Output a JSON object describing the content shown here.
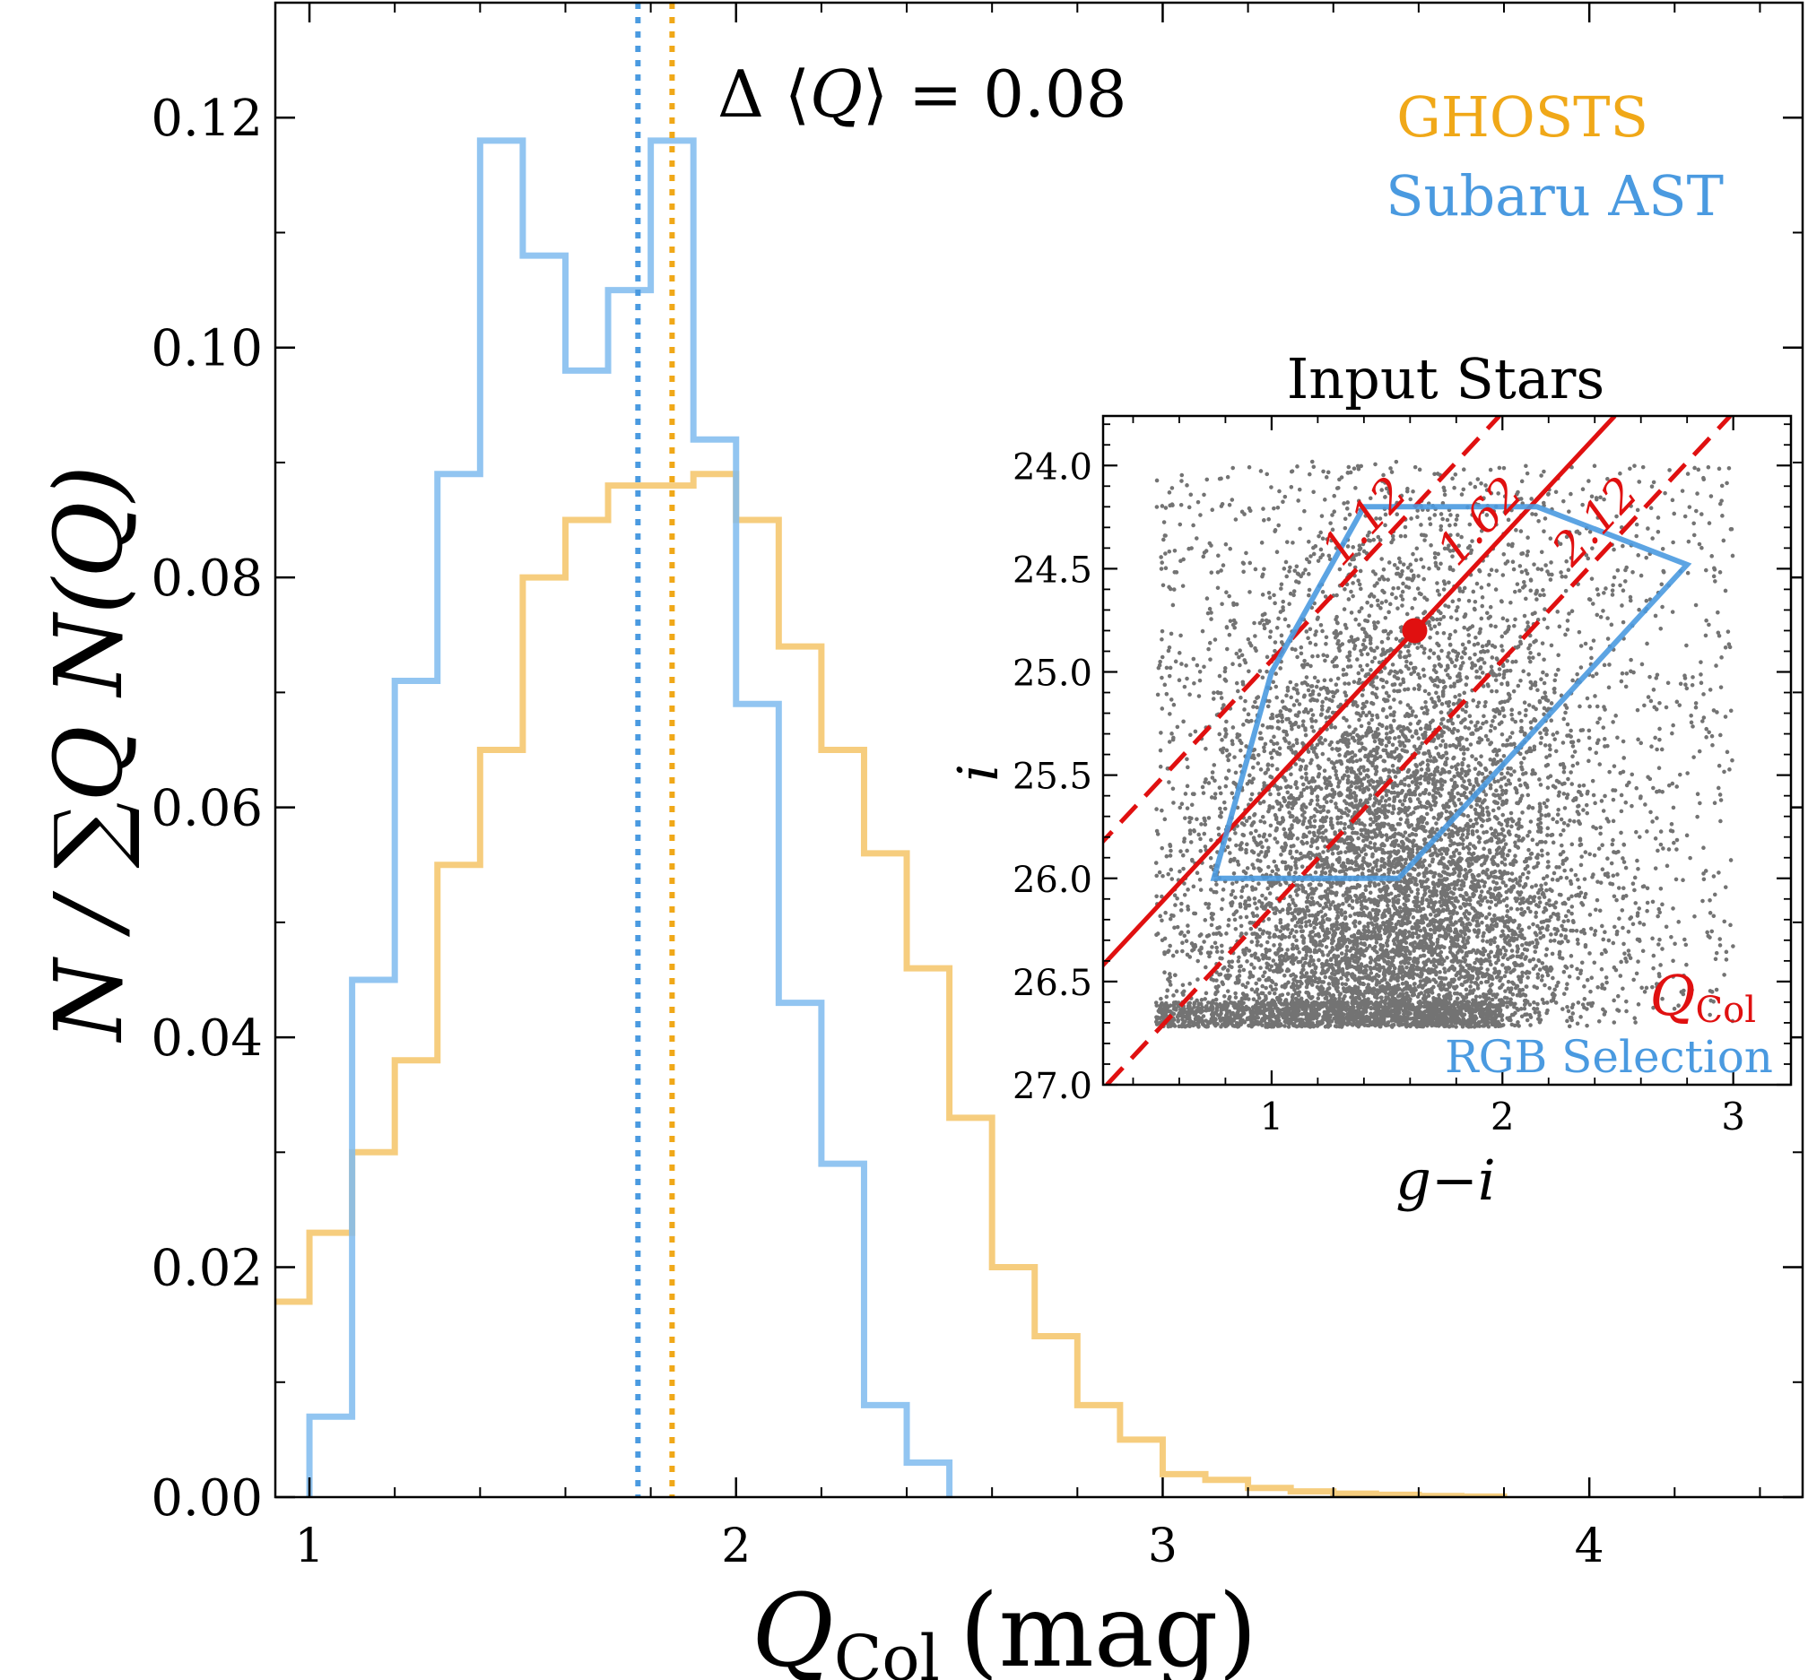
{
  "colors": {
    "ghosts": "#f0a818",
    "subaru": "#4a9ae0",
    "ghosts_hist": "#f5c467",
    "subaru_hist": "#7fbbee",
    "q_col": "#e01010",
    "points": "#000000"
  },
  "chart_data": [
    {
      "type": "line",
      "subtype": "step-histogram",
      "xlabel": {
        "symbol": "Q",
        "subscript": "Col",
        "unit": "(mag)"
      },
      "ylabel": "N / ∑Q N(Q)",
      "xlim": [
        0.92,
        4.5
      ],
      "ylim": [
        0,
        0.13
      ],
      "xticks": [
        1,
        2,
        3,
        4
      ],
      "xtick_labels": [
        "1",
        "2",
        "3",
        "4"
      ],
      "yticks": [
        0,
        0.02,
        0.04,
        0.06,
        0.08,
        0.1,
        0.12
      ],
      "ytick_labels": [
        "0.00",
        "0.02",
        "0.04",
        "0.06",
        "0.08",
        "0.10",
        "0.12"
      ],
      "bin_width": 0.1,
      "grid": false,
      "legend_position": "top-right",
      "series": [
        {
          "name": "GHOSTS",
          "bin_starts": [
            0.9,
            1.0,
            1.1,
            1.2,
            1.3,
            1.4,
            1.5,
            1.6,
            1.7,
            1.8,
            1.9,
            2.0,
            2.1,
            2.2,
            2.3,
            2.4,
            2.5,
            2.6,
            2.7,
            2.8,
            2.9,
            3.0,
            3.1,
            3.2,
            3.3,
            3.4,
            3.5,
            3.6,
            3.7
          ],
          "values": [
            0.017,
            0.023,
            0.03,
            0.038,
            0.055,
            0.065,
            0.08,
            0.085,
            0.088,
            0.088,
            0.089,
            0.085,
            0.074,
            0.065,
            0.056,
            0.046,
            0.033,
            0.02,
            0.014,
            0.008,
            0.005,
            0.002,
            0.0015,
            0.0008,
            0.0005,
            0.0003,
            0.0002,
            0.0001,
            5e-05
          ]
        },
        {
          "name": "Subaru AST",
          "bin_starts": [
            1.0,
            1.1,
            1.2,
            1.3,
            1.4,
            1.5,
            1.6,
            1.7,
            1.8,
            1.9,
            2.0,
            2.1,
            2.2,
            2.3,
            2.4
          ],
          "values": [
            0.007,
            0.045,
            0.071,
            0.089,
            0.118,
            0.108,
            0.098,
            0.105,
            0.118,
            0.092,
            0.069,
            0.043,
            0.029,
            0.008,
            0.003
          ]
        }
      ],
      "vlines": [
        {
          "series": "Subaru AST",
          "x": 1.77,
          "style": "dotted"
        },
        {
          "series": "GHOSTS",
          "x": 1.85,
          "style": "dotted"
        }
      ],
      "annotation": {
        "prefix": "Δ ⟨",
        "symbol": "Q",
        "suffix": "⟩ = 0.08"
      }
    },
    {
      "type": "scatter",
      "title": "Input Stars",
      "xlabel": "g−i",
      "ylabel": "i",
      "xlim": [
        0.27,
        3.25
      ],
      "ylim": [
        27.0,
        23.76
      ],
      "xticks": [
        1,
        2,
        3
      ],
      "xtick_labels": [
        "1",
        "2",
        "3"
      ],
      "yticks": [
        24.0,
        24.5,
        25.0,
        25.5,
        26.0,
        26.5,
        27.0
      ],
      "ytick_labels": [
        "24.0",
        "24.5",
        "25.0",
        "25.5",
        "26.0",
        "26.5",
        "27.0"
      ],
      "points_summary": "dense black star points over g-i 0.5 to 3.0 and i 24.0 to 26.7; densest near g-i 1.0 to 2.0, i 25.3 to 26.7",
      "q_col_lines": [
        {
          "label": "1.12",
          "value": 1.12,
          "style": "dashed"
        },
        {
          "label": "1.62",
          "value": 1.62,
          "style": "solid"
        },
        {
          "label": "2.12",
          "value": 2.12,
          "style": "dashed"
        }
      ],
      "q_col_slope_mag_per_color": -1.2,
      "q_col_pivot_i": 24.8,
      "q_col_point": {
        "x": 1.62,
        "y": 24.8
      },
      "rgb_selection_polygon": [
        [
          1.4,
          24.2
        ],
        [
          2.15,
          24.2
        ],
        [
          2.8,
          24.48
        ],
        [
          1.55,
          26.0
        ],
        [
          0.75,
          26.0
        ],
        [
          1.0,
          25.0
        ]
      ],
      "legend_position": "bottom-right",
      "legend": [
        {
          "label_symbol": "Q",
          "label_subscript": "Col",
          "color_key": "q_col"
        },
        {
          "label": "RGB Selection",
          "color_key": "subaru"
        }
      ]
    }
  ]
}
